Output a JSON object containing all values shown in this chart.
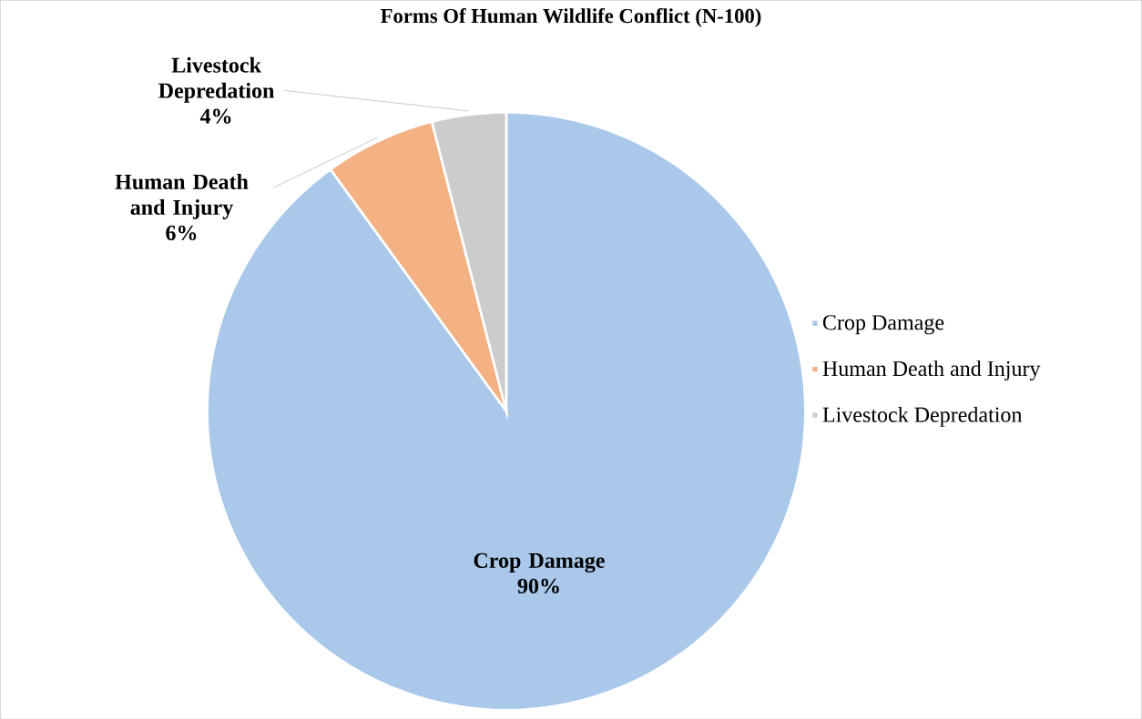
{
  "chart_data": {
    "type": "pie",
    "title": "Forms Of Human Wildlife Conflict (N-100)",
    "categories": [
      "Crop Damage",
      "Human Death and Injury",
      "Livestock Depredation"
    ],
    "values": [
      90,
      6,
      4
    ],
    "value_labels": [
      "90%",
      "6%",
      "4%"
    ],
    "colors": [
      "#a9c8ea",
      "#f4b183",
      "#cccccc"
    ],
    "legend": "right"
  }
}
